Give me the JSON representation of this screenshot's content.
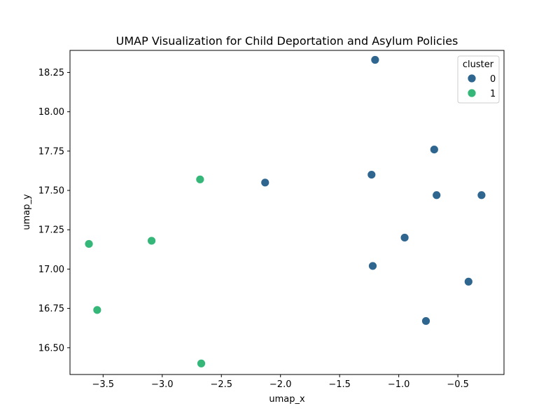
{
  "chart_data": {
    "type": "scatter",
    "title": "UMAP Visualization for Child Deportation and Asylum Policies",
    "xlabel": "umap_x",
    "ylabel": "umap_y",
    "xlim": [
      -3.78,
      -0.11
    ],
    "ylim": [
      16.33,
      18.39
    ],
    "xticks": [
      -3.5,
      -3.0,
      -2.5,
      -2.0,
      -1.5,
      -1.0,
      -0.5
    ],
    "xtick_labels": [
      "−3.5",
      "−3.0",
      "−2.5",
      "−2.0",
      "−1.5",
      "−1.0",
      "−0.5"
    ],
    "yticks": [
      16.5,
      16.75,
      17.0,
      17.25,
      17.5,
      17.75,
      18.0,
      18.25
    ],
    "ytick_labels": [
      "16.50",
      "16.75",
      "17.00",
      "17.25",
      "17.50",
      "17.75",
      "18.00",
      "18.25"
    ],
    "grid": false,
    "legend": {
      "title": "cluster",
      "position": "top-right"
    },
    "series": [
      {
        "name": "0",
        "color": "#2f6690",
        "points": [
          {
            "x": -1.2,
            "y": 18.33
          },
          {
            "x": -0.7,
            "y": 17.76
          },
          {
            "x": -1.23,
            "y": 17.6
          },
          {
            "x": -2.13,
            "y": 17.55
          },
          {
            "x": -0.68,
            "y": 17.47
          },
          {
            "x": -0.3,
            "y": 17.47
          },
          {
            "x": -0.95,
            "y": 17.2
          },
          {
            "x": -1.22,
            "y": 17.02
          },
          {
            "x": -0.41,
            "y": 16.92
          },
          {
            "x": -0.77,
            "y": 16.67
          }
        ]
      },
      {
        "name": "1",
        "color": "#35b779",
        "points": [
          {
            "x": -2.68,
            "y": 17.57
          },
          {
            "x": -3.09,
            "y": 17.18
          },
          {
            "x": -3.62,
            "y": 17.16
          },
          {
            "x": -3.55,
            "y": 16.74
          },
          {
            "x": -2.67,
            "y": 16.4
          }
        ]
      }
    ]
  }
}
